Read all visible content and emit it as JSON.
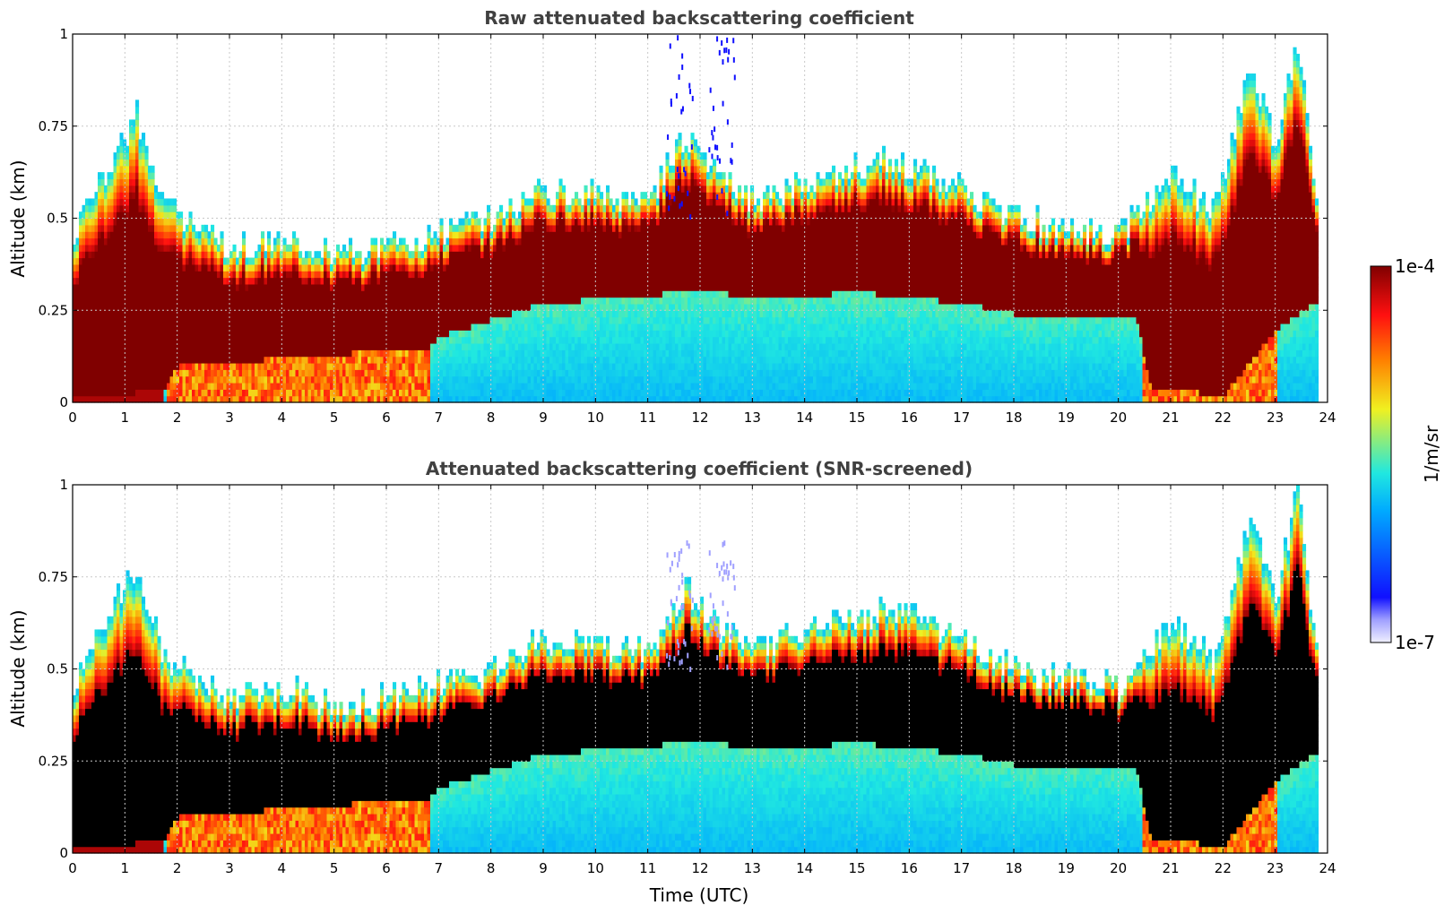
{
  "chart_data": [
    {
      "type": "heatmap",
      "title": "Raw attenuated backscattering coefficient",
      "xlabel": "",
      "ylabel": "Altitude (km)",
      "xlim": [
        0,
        24
      ],
      "ylim": [
        0,
        1
      ],
      "x_ticks": [
        0,
        1,
        2,
        3,
        4,
        5,
        6,
        7,
        8,
        9,
        10,
        11,
        12,
        13,
        14,
        15,
        16,
        17,
        18,
        19,
        20,
        21,
        22,
        23,
        24
      ],
      "y_ticks": [
        0,
        0.25,
        0.5,
        0.75,
        1
      ],
      "y_tick_labels": [
        "0",
        "0.25",
        "0.5",
        "0.75",
        "1"
      ],
      "grid": true,
      "data_end_hour": 23.8,
      "screened": false,
      "layer_base_km": [
        [
          0,
          0.02
        ],
        [
          1.7,
          0.03
        ],
        [
          2,
          0.1
        ],
        [
          4,
          0.12
        ],
        [
          6.8,
          0.15
        ],
        [
          7,
          0.18
        ],
        [
          9,
          0.27
        ],
        [
          11,
          0.29
        ],
        [
          12,
          0.31
        ],
        [
          13,
          0.28
        ],
        [
          15,
          0.3
        ],
        [
          17,
          0.27
        ],
        [
          18,
          0.24
        ],
        [
          20.3,
          0.24
        ],
        [
          20.6,
          0.04
        ],
        [
          22,
          0.02
        ],
        [
          23,
          0.2
        ],
        [
          23.8,
          0.28
        ]
      ],
      "layer_top_km": [
        [
          0,
          0.46
        ],
        [
          0.5,
          0.6
        ],
        [
          1.2,
          0.78
        ],
        [
          1.7,
          0.55
        ],
        [
          2,
          0.5
        ],
        [
          3,
          0.42
        ],
        [
          4,
          0.45
        ],
        [
          5,
          0.4
        ],
        [
          6,
          0.42
        ],
        [
          7,
          0.46
        ],
        [
          8,
          0.5
        ],
        [
          9,
          0.58
        ],
        [
          11,
          0.55
        ],
        [
          11.7,
          0.72
        ],
        [
          12.3,
          0.62
        ],
        [
          13,
          0.55
        ],
        [
          14,
          0.6
        ],
        [
          15.6,
          0.66
        ],
        [
          17,
          0.58
        ],
        [
          18,
          0.5
        ],
        [
          20,
          0.45
        ],
        [
          21,
          0.62
        ],
        [
          21.8,
          0.52
        ],
        [
          22.5,
          0.9
        ],
        [
          23,
          0.7
        ],
        [
          23.4,
          0.98
        ],
        [
          23.8,
          0.5
        ]
      ],
      "noise_bursts_hours": [
        11.5,
        11.7,
        12.3,
        12.5
      ]
    },
    {
      "type": "heatmap",
      "title": "Attenuated backscattering coefficient (SNR-screened)",
      "xlabel": "Time (UTC)",
      "ylabel": "Altitude (km)",
      "xlim": [
        0,
        24
      ],
      "ylim": [
        0,
        1
      ],
      "x_ticks": [
        0,
        1,
        2,
        3,
        4,
        5,
        6,
        7,
        8,
        9,
        10,
        11,
        12,
        13,
        14,
        15,
        16,
        17,
        18,
        19,
        20,
        21,
        22,
        23,
        24
      ],
      "y_ticks": [
        0,
        0.25,
        0.5,
        0.75,
        1
      ],
      "y_tick_labels": [
        "0",
        "0.25",
        "0.5",
        "0.75",
        "1"
      ],
      "grid": true,
      "data_end_hour": 23.8,
      "screened": true,
      "layer_base_km": [
        [
          0,
          0.02
        ],
        [
          1.7,
          0.03
        ],
        [
          2,
          0.1
        ],
        [
          4,
          0.12
        ],
        [
          6.8,
          0.15
        ],
        [
          7,
          0.18
        ],
        [
          9,
          0.27
        ],
        [
          11,
          0.29
        ],
        [
          12,
          0.31
        ],
        [
          13,
          0.28
        ],
        [
          15,
          0.3
        ],
        [
          17,
          0.27
        ],
        [
          18,
          0.24
        ],
        [
          20.3,
          0.24
        ],
        [
          20.6,
          0.04
        ],
        [
          22,
          0.02
        ],
        [
          23,
          0.2
        ],
        [
          23.8,
          0.28
        ]
      ],
      "layer_top_km": [
        [
          0,
          0.46
        ],
        [
          0.5,
          0.6
        ],
        [
          1.2,
          0.78
        ],
        [
          1.7,
          0.55
        ],
        [
          2,
          0.5
        ],
        [
          3,
          0.42
        ],
        [
          4,
          0.45
        ],
        [
          5,
          0.4
        ],
        [
          6,
          0.42
        ],
        [
          7,
          0.46
        ],
        [
          8,
          0.5
        ],
        [
          9,
          0.58
        ],
        [
          11,
          0.55
        ],
        [
          11.7,
          0.72
        ],
        [
          12.3,
          0.62
        ],
        [
          13,
          0.55
        ],
        [
          14,
          0.6
        ],
        [
          15.6,
          0.66
        ],
        [
          17,
          0.58
        ],
        [
          18,
          0.5
        ],
        [
          20,
          0.45
        ],
        [
          21,
          0.62
        ],
        [
          21.8,
          0.52
        ],
        [
          22.5,
          0.9
        ],
        [
          23,
          0.7
        ],
        [
          23.4,
          0.98
        ],
        [
          23.8,
          0.5
        ]
      ],
      "noise_bursts_hours": [
        11.5,
        11.7,
        12.3,
        12.5
      ]
    }
  ],
  "colorbar": {
    "max_label": "1e-4",
    "min_label": "1e-7",
    "unit_label": "1/m/sr",
    "scale": "log",
    "colormap": "jet",
    "colors": [
      "#f0f0ff",
      "#1010ff",
      "#00aaff",
      "#20e8e0",
      "#f0f020",
      "#ff8000",
      "#ff1010",
      "#800000"
    ],
    "saturation_color": "#800000",
    "screened_saturation_color": "#000000"
  }
}
